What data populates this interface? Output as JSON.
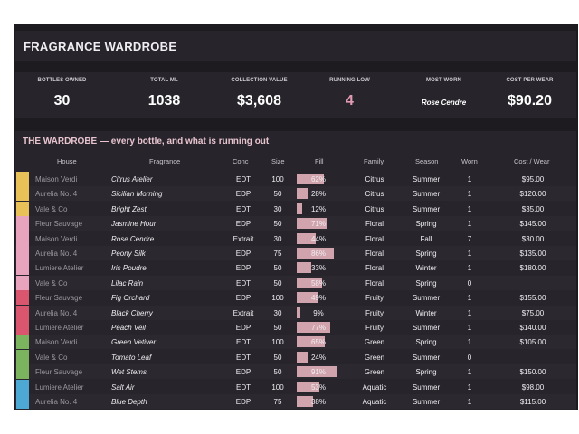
{
  "title": "FRAGRANCE WARDROBE",
  "kpis": [
    {
      "label": "BOTTLES OWNED",
      "value": "30"
    },
    {
      "label": "TOTAL ML",
      "value": "1038"
    },
    {
      "label": "COLLECTION VALUE",
      "value": "$3,608"
    },
    {
      "label": "RUNNING LOW",
      "value": "4"
    },
    {
      "label": "MOST WORN",
      "value": "Rose Cendre"
    },
    {
      "label": "COST PER WEAR",
      "value": "$90.20"
    }
  ],
  "section_title": "THE WARDROBE — every bottle, and what is running out",
  "headers": [
    "House",
    "Fragrance",
    "Conc",
    "Size",
    "Fill",
    "Family",
    "Season",
    "Worn",
    "Cost / Wear"
  ],
  "colors": {
    "citrus": "#e8c158",
    "floral": "#e8a3bd",
    "fruity": "#d9566e",
    "green": "#7cb35e",
    "aquatic": "#4da8d4",
    "fill_bar": "#d1a3ac",
    "accent_pink": "#e39bb4"
  },
  "rows": [
    {
      "house": "Maison Verdi",
      "fragrance": "Citrus Atelier",
      "conc": "EDT",
      "size": "100",
      "fill": 62,
      "fill_label": "62%",
      "family": "Citrus",
      "season": "Summer",
      "worn": "1",
      "cost": "$95.00",
      "swatch": "#e8c158"
    },
    {
      "house": "Aurelia No. 4",
      "fragrance": "Sicilian Morning",
      "conc": "EDP",
      "size": "50",
      "fill": 28,
      "fill_label": "28%",
      "family": "Citrus",
      "season": "Summer",
      "worn": "1",
      "cost": "$120.00",
      "swatch": "#e8c158"
    },
    {
      "house": "Vale & Co",
      "fragrance": "Bright Zest",
      "conc": "EDT",
      "size": "30",
      "fill": 12,
      "fill_label": "12%",
      "family": "Citrus",
      "season": "Summer",
      "worn": "1",
      "cost": "$35.00",
      "swatch": "#e8c158"
    },
    {
      "house": "Fleur Sauvage",
      "fragrance": "Jasmine Hour",
      "conc": "EDP",
      "size": "50",
      "fill": 71,
      "fill_label": "71%",
      "family": "Floral",
      "season": "Spring",
      "worn": "1",
      "cost": "$145.00",
      "swatch": "#e8a3bd"
    },
    {
      "house": "Maison Verdi",
      "fragrance": "Rose Cendre",
      "conc": "Extrait",
      "size": "30",
      "fill": 44,
      "fill_label": "44%",
      "family": "Floral",
      "season": "Fall",
      "worn": "7",
      "cost": "$30.00",
      "swatch": "#e8a3bd"
    },
    {
      "house": "Aurelia No. 4",
      "fragrance": "Peony Silk",
      "conc": "EDP",
      "size": "75",
      "fill": 86,
      "fill_label": "86%",
      "family": "Floral",
      "season": "Spring",
      "worn": "1",
      "cost": "$135.00",
      "swatch": "#e8a3bd"
    },
    {
      "house": "Lumiere Atelier",
      "fragrance": "Iris Poudre",
      "conc": "EDP",
      "size": "50",
      "fill": 33,
      "fill_label": "33%",
      "family": "Floral",
      "season": "Winter",
      "worn": "1",
      "cost": "$180.00",
      "swatch": "#e8a3bd"
    },
    {
      "house": "Vale & Co",
      "fragrance": "Lilac Rain",
      "conc": "EDT",
      "size": "50",
      "fill": 58,
      "fill_label": "58%",
      "family": "Floral",
      "season": "Spring",
      "worn": "0",
      "cost": "",
      "swatch": "#e8a3bd"
    },
    {
      "house": "Fleur Sauvage",
      "fragrance": "Fig Orchard",
      "conc": "EDP",
      "size": "100",
      "fill": 49,
      "fill_label": "49%",
      "family": "Fruity",
      "season": "Summer",
      "worn": "1",
      "cost": "$155.00",
      "swatch": "#d9566e"
    },
    {
      "house": "Aurelia No. 4",
      "fragrance": "Black Cherry",
      "conc": "Extrait",
      "size": "30",
      "fill": 9,
      "fill_label": "9%",
      "family": "Fruity",
      "season": "Winter",
      "worn": "1",
      "cost": "$75.00",
      "swatch": "#d9566e"
    },
    {
      "house": "Lumiere Atelier",
      "fragrance": "Peach Veil",
      "conc": "EDP",
      "size": "50",
      "fill": 77,
      "fill_label": "77%",
      "family": "Fruity",
      "season": "Summer",
      "worn": "1",
      "cost": "$140.00",
      "swatch": "#d9566e"
    },
    {
      "house": "Maison Verdi",
      "fragrance": "Green Vetiver",
      "conc": "EDT",
      "size": "100",
      "fill": 65,
      "fill_label": "65%",
      "family": "Green",
      "season": "Spring",
      "worn": "1",
      "cost": "$105.00",
      "swatch": "#7cb35e"
    },
    {
      "house": "Vale & Co",
      "fragrance": "Tomato Leaf",
      "conc": "EDT",
      "size": "50",
      "fill": 24,
      "fill_label": "24%",
      "family": "Green",
      "season": "Summer",
      "worn": "0",
      "cost": "",
      "swatch": "#7cb35e"
    },
    {
      "house": "Fleur Sauvage",
      "fragrance": "Wet Stems",
      "conc": "EDP",
      "size": "50",
      "fill": 91,
      "fill_label": "91%",
      "family": "Green",
      "season": "Spring",
      "worn": "1",
      "cost": "$150.00",
      "swatch": "#7cb35e"
    },
    {
      "house": "Lumiere Atelier",
      "fragrance": "Salt Air",
      "conc": "EDT",
      "size": "100",
      "fill": 53,
      "fill_label": "53%",
      "family": "Aquatic",
      "season": "Summer",
      "worn": "1",
      "cost": "$98.00",
      "swatch": "#4da8d4"
    },
    {
      "house": "Aurelia No. 4",
      "fragrance": "Blue Depth",
      "conc": "EDP",
      "size": "75",
      "fill": 38,
      "fill_label": "38%",
      "family": "Aquatic",
      "season": "Summer",
      "worn": "1",
      "cost": "$115.00",
      "swatch": "#4da8d4"
    }
  ]
}
